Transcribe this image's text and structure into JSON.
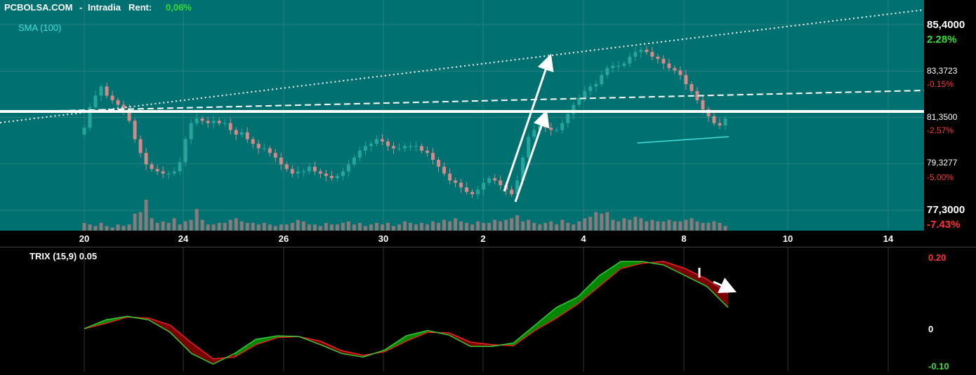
{
  "header": {
    "brand": "PCBOLSA.COM",
    "mode": "Intradia",
    "rent_label": "Rent:",
    "rent_value": "0,06%",
    "sma_label": "SMA (100)"
  },
  "colors": {
    "main_bg": "#007070",
    "lower_bg": "#000000",
    "up_candle": "#26a69a",
    "down_candle": "#d38a88",
    "volume": "#b87d7d",
    "grid": "#4a8f8f",
    "pct_positive": "#33dd33",
    "pct_negative": "#ff3333",
    "sma_line": "#40e0e0",
    "trix_line": "#33cc33",
    "signal_line": "#ee2222",
    "trix_fill_up": "#008800",
    "trix_fill_down": "#7a0000"
  },
  "price_axis": [
    {
      "price": "85,4000",
      "pct": "2.28%",
      "tone": "pos"
    },
    {
      "price": "83,3723",
      "pct": "-0.15%",
      "tone": "neg"
    },
    {
      "price": "81,3500",
      "pct": "-2.57%",
      "tone": "neg"
    },
    {
      "price": "79,3277",
      "pct": "-5.00%",
      "tone": "neg"
    },
    {
      "price": "77,3000",
      "pct": "-7.43%",
      "tone": "neg"
    }
  ],
  "trix": {
    "label": "TRIX (15,9) 0.05",
    "axis": [
      {
        "label": "0.20",
        "tone": "neg"
      },
      {
        "label": "0",
        "tone": "plain"
      },
      {
        "label": "-0.10",
        "tone": "pos"
      }
    ]
  },
  "chart_data": [
    {
      "type": "candlestick",
      "title": "PCBOLSA.COM - Intradia",
      "x_ticks": [
        "20",
        "24",
        "26",
        "30",
        "2",
        "4",
        "8",
        "10",
        "14"
      ],
      "ylim": [
        77.3,
        85.4
      ],
      "y_ticks": [
        85.4,
        83.3723,
        81.35,
        79.3277,
        77.3
      ],
      "grid": true,
      "close": [
        80.9,
        81.8,
        82.3,
        82.7,
        82.3,
        82.1,
        81.9,
        81.7,
        81.2,
        80.4,
        79.8,
        79.3,
        79.1,
        79.0,
        78.9,
        78.9,
        79.0,
        79.4,
        80.4,
        81.1,
        81.3,
        81.2,
        81.1,
        81.2,
        81.1,
        81.1,
        80.8,
        80.6,
        80.7,
        80.4,
        80.2,
        80.0,
        80.0,
        79.8,
        79.6,
        79.3,
        79.1,
        78.9,
        79.0,
        79.0,
        79.2,
        79.0,
        78.9,
        78.8,
        78.7,
        78.8,
        79.0,
        79.3,
        79.6,
        79.9,
        80.1,
        80.2,
        80.4,
        80.3,
        80.1,
        80.0,
        80.0,
        80.1,
        80.1,
        80.1,
        79.9,
        79.8,
        79.5,
        79.2,
        78.9,
        78.6,
        78.5,
        78.3,
        78.1,
        78.0,
        78.2,
        78.5,
        78.7,
        78.6,
        78.4,
        78.2,
        78.0,
        78.6,
        79.6,
        80.5,
        80.8,
        81.0,
        80.9,
        80.8,
        80.8,
        81.1,
        81.5,
        81.9,
        82.2,
        82.5,
        82.7,
        82.8,
        83.2,
        83.5,
        83.6,
        83.6,
        83.7,
        84.0,
        84.2,
        84.3,
        84.2,
        84.0,
        83.9,
        83.7,
        83.5,
        83.4,
        83.2,
        82.8,
        82.5,
        82.1,
        81.7,
        81.4,
        81.1,
        81.0,
        81.3
      ],
      "volume": [
        0.25,
        0.2,
        0.15,
        0.25,
        0.15,
        0.1,
        0.2,
        0.15,
        0.2,
        0.55,
        0.6,
        1.0,
        0.4,
        0.25,
        0.3,
        0.25,
        0.4,
        0.2,
        0.3,
        0.35,
        0.7,
        0.35,
        0.2,
        0.2,
        0.25,
        0.25,
        0.35,
        0.4,
        0.3,
        0.25,
        0.25,
        0.2,
        0.25,
        0.2,
        0.15,
        0.2,
        0.2,
        0.25,
        0.35,
        0.3,
        0.2,
        0.2,
        0.15,
        0.25,
        0.2,
        0.2,
        0.25,
        0.3,
        0.2,
        0.25,
        0.15,
        0.2,
        0.25,
        0.2,
        0.25,
        0.15,
        0.2,
        0.3,
        0.25,
        0.2,
        0.25,
        0.2,
        0.3,
        0.25,
        0.35,
        0.3,
        0.4,
        0.3,
        0.25,
        0.2,
        0.3,
        0.25,
        0.25,
        0.35,
        0.3,
        0.35,
        0.4,
        0.5,
        0.3,
        0.35,
        0.25,
        0.2,
        0.25,
        0.3,
        0.2,
        0.35,
        0.25,
        0.2,
        0.3,
        0.4,
        0.45,
        0.6,
        0.55,
        0.6,
        0.35,
        0.3,
        0.4,
        0.35,
        0.45,
        0.4,
        0.3,
        0.35,
        0.3,
        0.3,
        0.35,
        0.3,
        0.3,
        0.35,
        0.4,
        0.3,
        0.25,
        0.25,
        0.3,
        0.25,
        0.15
      ]
    },
    {
      "type": "line",
      "title": "TRIX (15,9)",
      "x_ticks": [
        "20",
        "24",
        "26",
        "30",
        "2",
        "4",
        "8",
        "10",
        "14"
      ],
      "ylim": [
        -0.105,
        0.2
      ],
      "series": [
        {
          "name": "TRIX",
          "values": [
            0.0,
            0.025,
            0.035,
            0.025,
            -0.01,
            -0.07,
            -0.1,
            -0.07,
            -0.03,
            -0.02,
            -0.022,
            -0.045,
            -0.07,
            -0.08,
            -0.06,
            -0.02,
            -0.005,
            -0.018,
            -0.05,
            -0.05,
            -0.04,
            0.01,
            0.06,
            0.09,
            0.15,
            0.19,
            0.19,
            0.18,
            0.15,
            0.12,
            0.06
          ]
        },
        {
          "name": "Signal",
          "values": [
            0.0,
            0.015,
            0.033,
            0.03,
            0.01,
            -0.04,
            -0.085,
            -0.08,
            -0.045,
            -0.025,
            -0.022,
            -0.035,
            -0.062,
            -0.075,
            -0.065,
            -0.035,
            -0.01,
            -0.012,
            -0.038,
            -0.045,
            -0.048,
            -0.005,
            0.03,
            0.07,
            0.12,
            0.17,
            0.185,
            0.19,
            0.17,
            0.14,
            0.1
          ]
        }
      ]
    }
  ]
}
